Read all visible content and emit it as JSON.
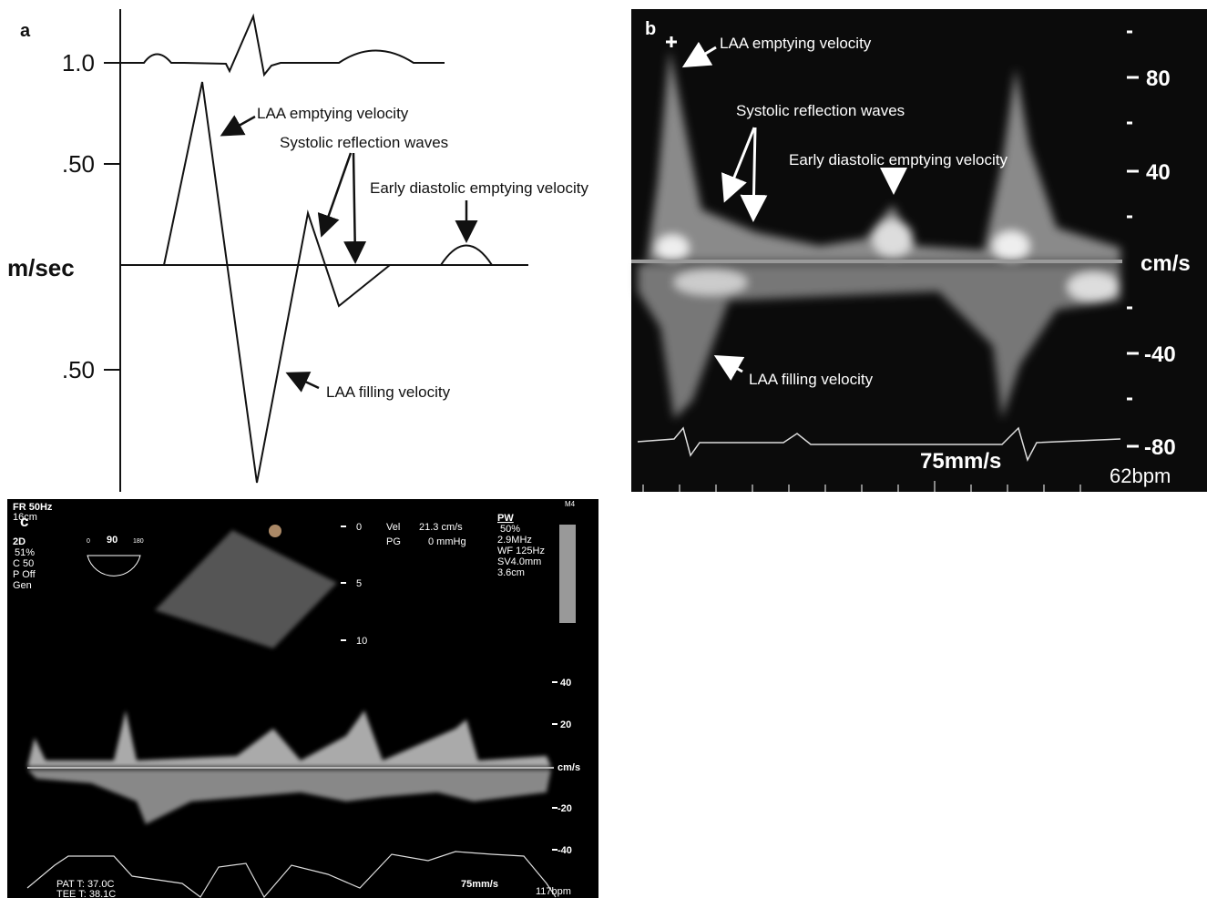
{
  "panel_a": {
    "label": "a",
    "y_labels": [
      "1.0",
      ".50",
      ".50"
    ],
    "axis_label": "m/sec",
    "annotations": [
      "LAA emptying velocity",
      "Systolic reflection waves",
      "Early diastolic emptying velocity",
      "LAA filling velocity"
    ]
  },
  "panel_b": {
    "label": "b",
    "annotations": [
      "LAA emptying velocity",
      "Systolic reflection waves",
      "Early diastolic emptying velocity",
      "LAA filling velocity"
    ],
    "scale_labels": [
      "80",
      "40",
      "cm/s",
      "-40",
      "-80"
    ],
    "sweep_speed": "75mm/s",
    "heart_rate": "62bpm"
  },
  "panel_c": {
    "label": "c",
    "settings_left": [
      "FR 50Hz",
      "16cm",
      "2D",
      "51%",
      "C 50",
      "P Off",
      "Gen"
    ],
    "sector_labels": [
      "0",
      "90",
      "180"
    ],
    "measurements": [
      "Vel",
      "21.3 cm/s",
      "PG",
      "0 mmHg"
    ],
    "depth_labels": [
      "0",
      "5",
      "10"
    ],
    "settings_right": [
      "PW",
      "50%",
      "2.9MHz",
      "WF 125Hz",
      "SV4.0mm",
      "3.6cm"
    ],
    "map_label": "M4",
    "scale_labels": [
      "40",
      "20",
      "cm/s",
      "-20",
      "-40"
    ],
    "temperatures": [
      "PAT T: 37.0C",
      "TEE T: 38.1C"
    ],
    "sweep_speed": "75mm/s",
    "heart_rate": "117bpm"
  }
}
